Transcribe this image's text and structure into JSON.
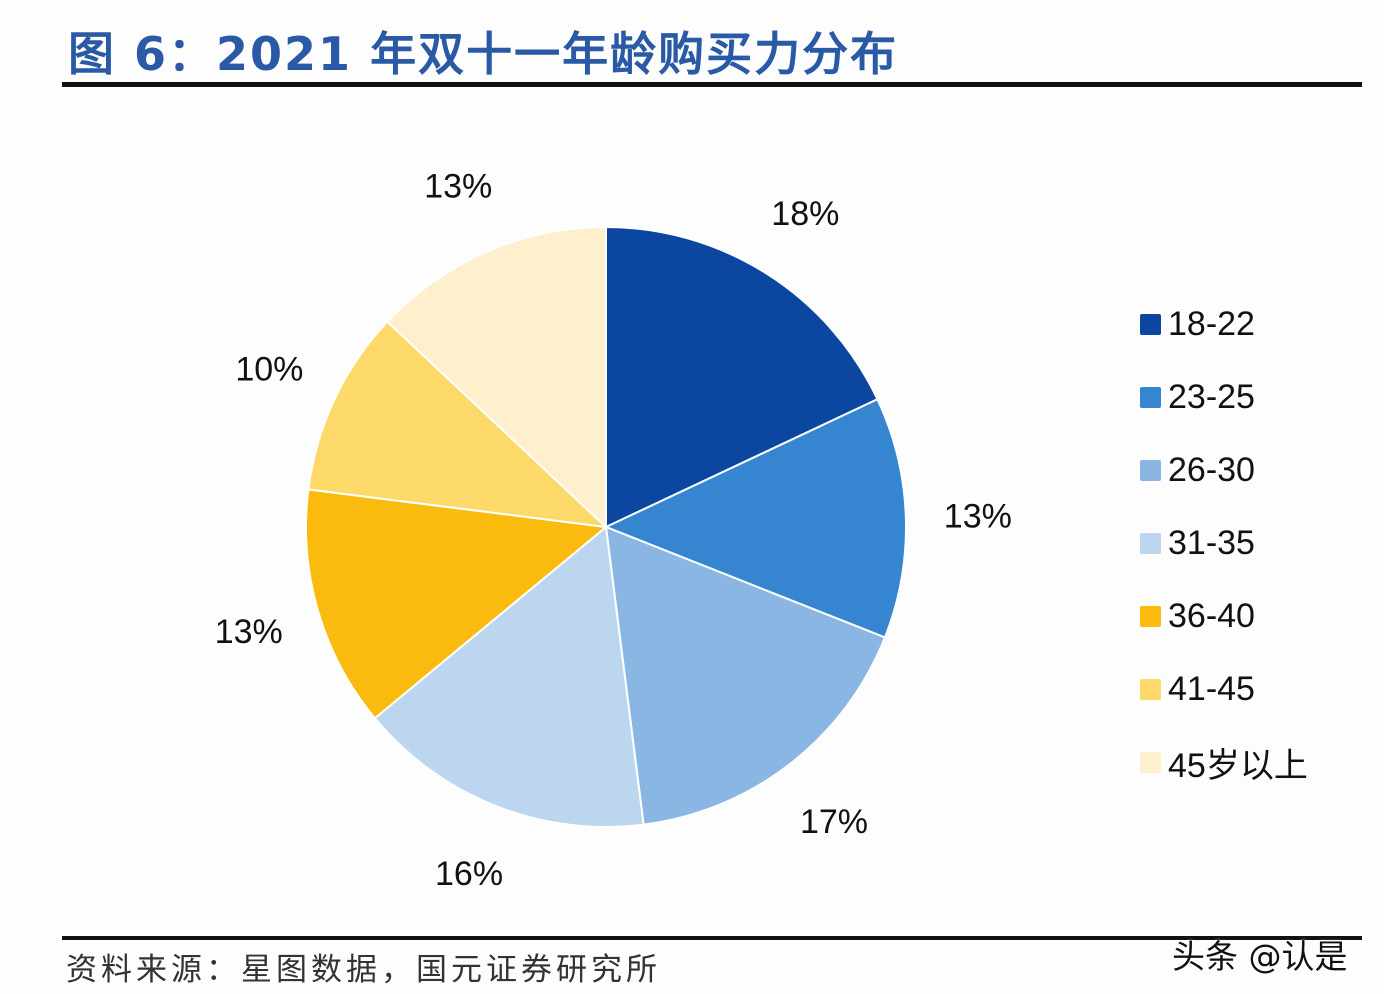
{
  "title": "图 6：2021 年双十一年龄购买力分布",
  "source": "资料来源：星图数据，国元证券研究所",
  "watermark": "头条 @认是",
  "chart_data": {
    "type": "pie",
    "title": "图 6：2021 年双十一年龄购买力分布",
    "categories": [
      "18-22",
      "23-25",
      "26-30",
      "31-35",
      "36-40",
      "41-45",
      "45岁以上"
    ],
    "values": [
      18,
      13,
      17,
      16,
      13,
      10,
      13
    ],
    "labels": [
      "18%",
      "13%",
      "17%",
      "16%",
      "13%",
      "10%",
      "13%"
    ],
    "colors": [
      "#0b47a1",
      "#3585d0",
      "#8ab6e4",
      "#bdd6f0",
      "#fabb0e",
      "#fdd96a",
      "#fef0cc"
    ],
    "start": "12 o'clock, clockwise",
    "legend": "right"
  }
}
